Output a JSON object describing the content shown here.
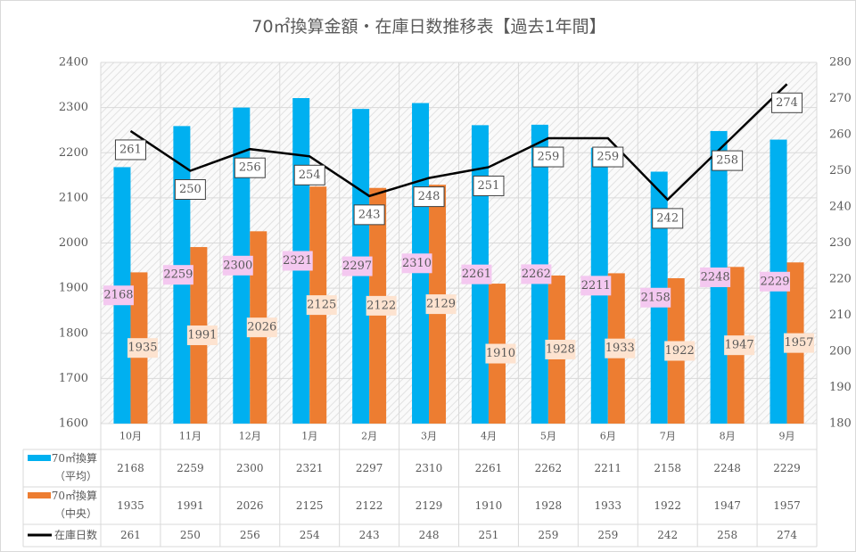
{
  "chart_data": {
    "type": "bar",
    "title": "70㎡換算金額・在庫日数推移表【過去1年間】",
    "categories": [
      "10月",
      "11月",
      "12月",
      "1月",
      "2月",
      "3月",
      "4月",
      "5月",
      "6月",
      "7月",
      "8月",
      "9月"
    ],
    "series": [
      {
        "name": "70㎡換算",
        "name2": "（平均）",
        "type": "bar",
        "axis": "left",
        "color": "#00b0f0",
        "label_bg": "#f4c8f0",
        "values": [
          2168,
          2259,
          2300,
          2321,
          2297,
          2310,
          2261,
          2262,
          2211,
          2158,
          2248,
          2229
        ]
      },
      {
        "name": "70㎡換算",
        "name2": "（中央）",
        "type": "bar",
        "axis": "left",
        "color": "#ed7d31",
        "label_bg": "#fde3d0",
        "values": [
          1935,
          1991,
          2026,
          2125,
          2122,
          2129,
          1910,
          1928,
          1933,
          1922,
          1947,
          1957
        ]
      },
      {
        "name": "在庫日数",
        "name2": "",
        "type": "line",
        "axis": "right",
        "color": "#000000",
        "label_bg": "#ffffff",
        "values": [
          261,
          250,
          256,
          254,
          243,
          248,
          251,
          259,
          259,
          242,
          258,
          274
        ]
      }
    ],
    "ylim": [
      1600,
      2400
    ],
    "yticks": [
      1600,
      1700,
      1800,
      1900,
      2000,
      2100,
      2200,
      2300,
      2400
    ],
    "y2lim": [
      180,
      280
    ],
    "y2ticks": [
      180,
      190,
      200,
      210,
      220,
      230,
      240,
      250,
      260,
      270,
      280
    ],
    "grid": true,
    "legend": "data-table"
  }
}
